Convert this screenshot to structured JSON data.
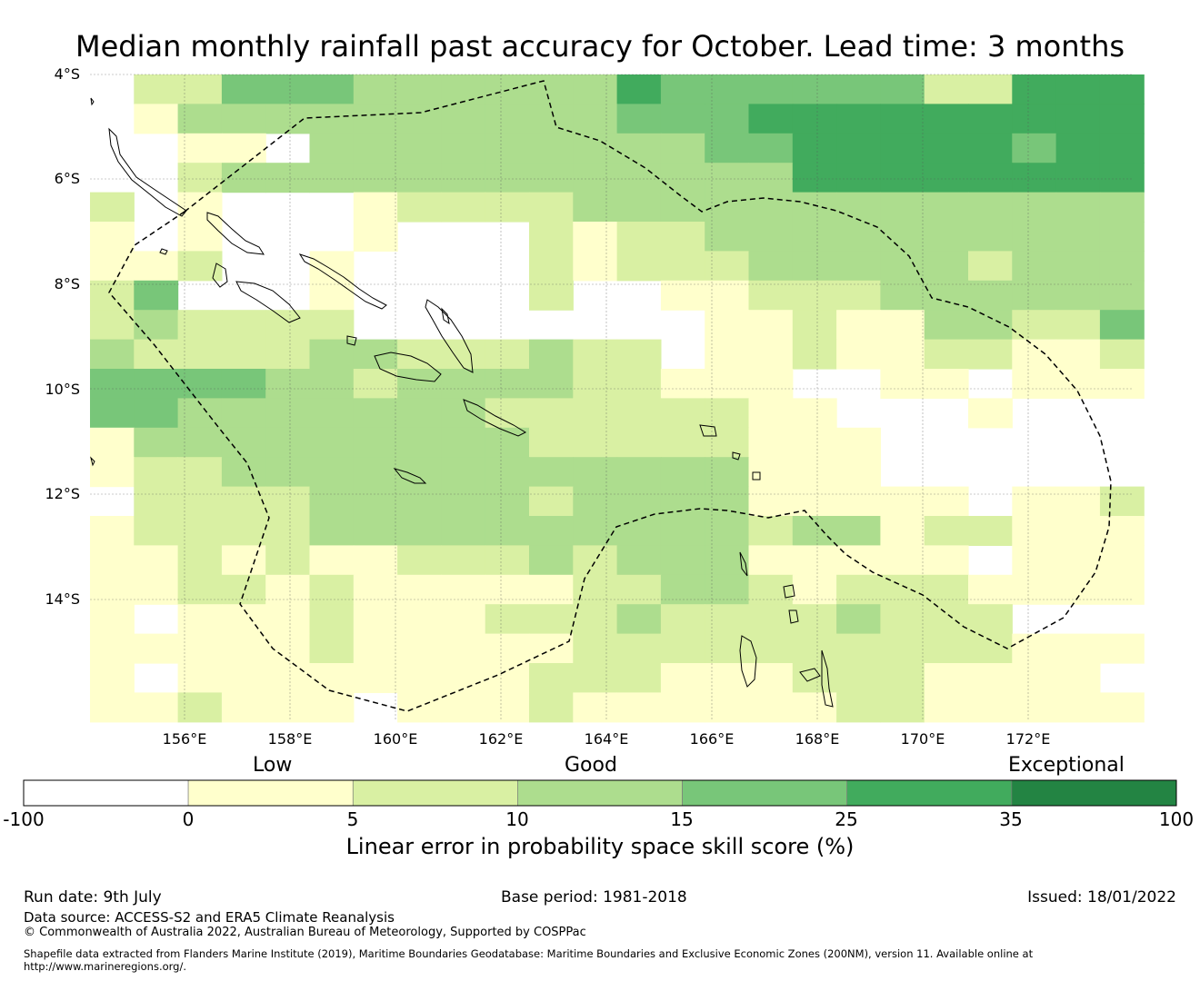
{
  "title": "Median monthly rainfall past accuracy for October. Lead time: 3 months",
  "map": {
    "lat_labels": [
      "4°S",
      "6°S",
      "8°S",
      "10°S",
      "12°S",
      "14°S"
    ],
    "lon_labels": [
      "156°E",
      "158°E",
      "160°E",
      "162°E",
      "164°E",
      "166°E",
      "168°E",
      "170°E",
      "172°E"
    ]
  },
  "colorbar": {
    "category_labels": [
      "Low",
      "Good",
      "Exceptional"
    ],
    "ticks": [
      "-100",
      "0",
      "5",
      "10",
      "15",
      "25",
      "35",
      "100"
    ],
    "colors": [
      "#ffffff",
      "#ffffcc",
      "#d9f0a3",
      "#addd8e",
      "#78c679",
      "#41ab5d",
      "#238443"
    ],
    "label": "Linear error in probability space skill score (%)"
  },
  "footer": {
    "run_date": "Run date: 9th July",
    "base_period": "Base period: 1981-2018",
    "issued": "Issued: 18/01/2022",
    "data_source": "Data source: ACCESS-S2 and ERA5 Climate Reanalysis",
    "copyright": "© Commonwealth of Australia 2022, Australian Bureau of Meteorology, Supported by COSPPac",
    "shapefile_line1": "Shapefile data extracted from Flanders Marine Institute (2019), Maritime Boundaries Geodatabase: Maritime Boundaries and Exclusive Economic Zones (200NM), version 11. Available online at",
    "shapefile_line2": "http://www.marineregions.org/."
  }
}
